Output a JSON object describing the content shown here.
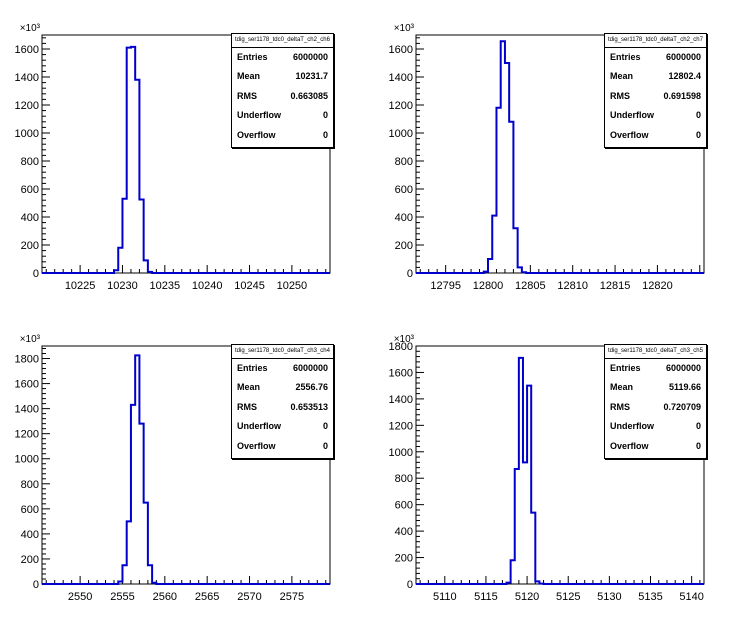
{
  "axis_exponent": "×10³",
  "stats_labels": [
    "Entries",
    "Mean",
    "RMS",
    "Underflow",
    "Overflow"
  ],
  "chart_data": [
    {
      "type": "histogram",
      "title": "tdig_ser1178_tdc0_deltaT_ch2_ch6",
      "stats": {
        "entries": "6000000",
        "mean": "10231.7",
        "rms": "0.663085",
        "underflow": "0",
        "overflow": "0"
      },
      "xlim": [
        10220.5,
        10254.5
      ],
      "ylim": [
        0,
        1700
      ],
      "xticks": [
        10225,
        10230,
        10235,
        10240,
        10245,
        10250
      ],
      "xtick_labels": [
        "10225",
        "10230",
        "10235",
        "10240",
        "10245",
        "10250"
      ],
      "yticks": [
        0,
        200,
        400,
        600,
        800,
        1000,
        1200,
        1400,
        1600
      ],
      "ytick_labels": [
        "0",
        "200",
        "400",
        "600",
        "800",
        "1000",
        "1200",
        "1400",
        "1600"
      ],
      "ylabel_multiplier": "10^3",
      "bin_edges": [
        10229,
        10229.5,
        10230,
        10230.5,
        10231,
        10231.5,
        10232,
        10232.5,
        10233,
        10233.5
      ],
      "bin_values": [
        20,
        180,
        530,
        1610,
        1615,
        1380,
        525,
        90,
        8
      ],
      "color": "#0000cc"
    },
    {
      "type": "histogram",
      "title": "tdig_ser1178_tdc0_deltaT_ch2_ch7",
      "stats": {
        "entries": "6000000",
        "mean": "12802.4",
        "rms": "0.691598",
        "underflow": "0",
        "overflow": "0"
      },
      "xlim": [
        12791.5,
        12825.5
      ],
      "ylim": [
        0,
        1700
      ],
      "xticks": [
        12795,
        12800,
        12805,
        12810,
        12815,
        12820
      ],
      "xtick_labels": [
        "12795",
        "12800",
        "12805",
        "12810",
        "12815",
        "12820"
      ],
      "yticks": [
        0,
        200,
        400,
        600,
        800,
        1000,
        1200,
        1400,
        1600
      ],
      "ytick_labels": [
        "0",
        "200",
        "400",
        "600",
        "800",
        "1000",
        "1200",
        "1400",
        "1600"
      ],
      "ylabel_multiplier": "10^3",
      "bin_edges": [
        12799.5,
        12800,
        12800.5,
        12801,
        12801.5,
        12802,
        12802.5,
        12803,
        12803.5,
        12804,
        12804.5
      ],
      "bin_values": [
        10,
        100,
        410,
        1180,
        1655,
        1500,
        1080,
        320,
        40,
        5
      ],
      "color": "#0000cc"
    },
    {
      "type": "histogram",
      "title": "tdig_ser1178_tdc0_deltaT_ch3_ch4",
      "stats": {
        "entries": "6000000",
        "mean": "2556.76",
        "rms": "0.653513",
        "underflow": "0",
        "overflow": "0"
      },
      "xlim": [
        2545.5,
        2579.5
      ],
      "ylim": [
        0,
        1900
      ],
      "xticks": [
        2550,
        2555,
        2560,
        2565,
        2570,
        2575
      ],
      "xtick_labels": [
        "2550",
        "2555",
        "2560",
        "2565",
        "2570",
        "2575"
      ],
      "yticks": [
        0,
        200,
        400,
        600,
        800,
        1000,
        1200,
        1400,
        1600,
        1800
      ],
      "ytick_labels": [
        "0",
        "200",
        "400",
        "600",
        "800",
        "1000",
        "1200",
        "1400",
        "1600",
        "1800"
      ],
      "ylabel_multiplier": "10^3",
      "bin_edges": [
        2554.5,
        2555,
        2555.5,
        2556,
        2556.5,
        2557,
        2557.5,
        2558,
        2558.5,
        2559
      ],
      "bin_values": [
        20,
        150,
        500,
        1430,
        1825,
        1280,
        650,
        150,
        10
      ],
      "color": "#0000cc"
    },
    {
      "type": "histogram",
      "title": "tdig_ser1178_tdc0_deltaT_ch3_ch5",
      "stats": {
        "entries": "6000000",
        "mean": "5119.66",
        "rms": "0.720709",
        "underflow": "0",
        "overflow": "0"
      },
      "xlim": [
        5106.5,
        5141.5
      ],
      "ylim": [
        0,
        1800
      ],
      "xticks": [
        5110,
        5115,
        5120,
        5125,
        5130,
        5135,
        5140
      ],
      "xtick_labels": [
        "5110",
        "5115",
        "5120",
        "5125",
        "5130",
        "5135",
        "5140"
      ],
      "yticks": [
        0,
        200,
        400,
        600,
        800,
        1000,
        1200,
        1400,
        1600,
        1800
      ],
      "ytick_labels": [
        "0",
        "200",
        "400",
        "600",
        "800",
        "1000",
        "1200",
        "1400",
        "1600",
        "1800"
      ],
      "ylabel_multiplier": "10^3",
      "bin_edges": [
        5117.5,
        5118,
        5118.5,
        5119,
        5119.5,
        5120,
        5120.5,
        5121,
        5121.5,
        5122
      ],
      "bin_values": [
        10,
        180,
        870,
        1710,
        920,
        1500,
        540,
        20,
        3
      ],
      "color": "#0000cc"
    }
  ]
}
